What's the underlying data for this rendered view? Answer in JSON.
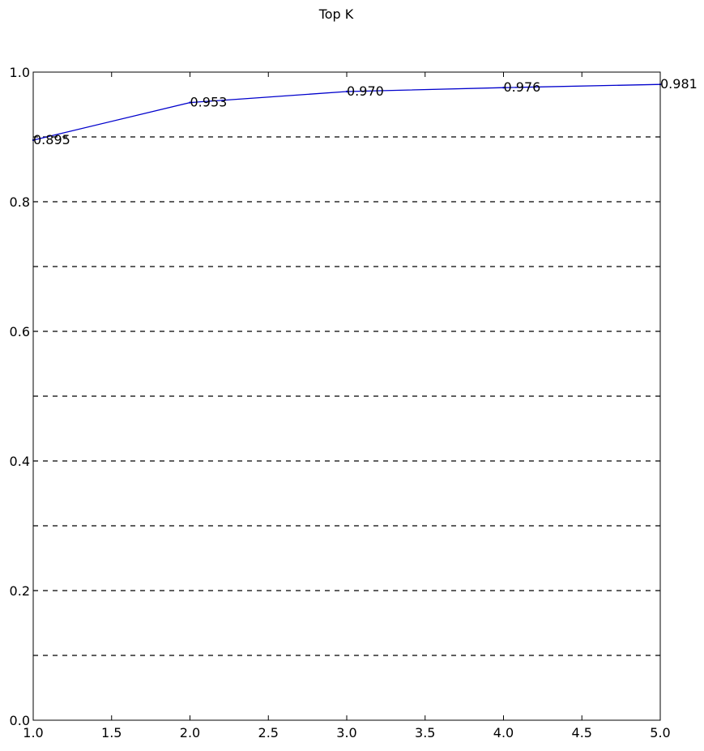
{
  "chart_data": {
    "type": "line",
    "title": "Top K",
    "xlabel": "",
    "ylabel": "",
    "xlim": [
      1.0,
      5.0
    ],
    "ylim": [
      0.0,
      1.0
    ],
    "x_ticks": [
      "1.0",
      "1.5",
      "2.0",
      "2.5",
      "3.0",
      "3.5",
      "4.0",
      "4.5",
      "5.0"
    ],
    "y_ticks": [
      "0.0",
      "0.2",
      "0.4",
      "0.6",
      "0.8",
      "1.0"
    ],
    "grid": "horizontal dashed",
    "grid_y": [
      0.1,
      0.2,
      0.3,
      0.4,
      0.5,
      0.6,
      0.7,
      0.8,
      0.9
    ],
    "legend": "none",
    "series": [
      {
        "x": [
          1,
          2,
          3,
          4,
          5
        ],
        "y": [
          0.895,
          0.953,
          0.97,
          0.976,
          0.981
        ],
        "labels": [
          "0.895",
          "0.953",
          "0.970",
          "0.976",
          "0.981"
        ],
        "color": "#0000cc"
      }
    ]
  }
}
